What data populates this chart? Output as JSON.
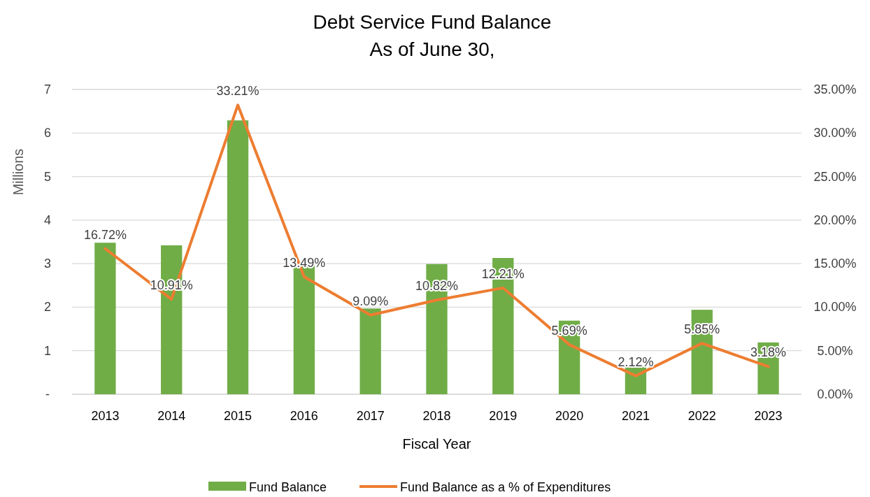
{
  "chart_data": {
    "type": "bar",
    "title": "Debt Service Fund Balance",
    "subtitle": "As of June 30,",
    "xlabel": "Fiscal Year",
    "ylabel": "Millions",
    "categories": [
      "2013",
      "2014",
      "2015",
      "2016",
      "2017",
      "2018",
      "2019",
      "2020",
      "2021",
      "2022",
      "2023"
    ],
    "series": [
      {
        "name": "Fund Balance",
        "type": "bar",
        "color": "#70ad47",
        "values": [
          3.48,
          3.42,
          6.29,
          2.95,
          1.97,
          2.99,
          3.13,
          1.69,
          0.64,
          1.94,
          1.19
        ]
      },
      {
        "name": "Fund Balance as a % of Expenditures",
        "type": "line",
        "axis": "y2",
        "color": "#ed7d31",
        "values": [
          16.72,
          10.91,
          33.21,
          13.49,
          9.09,
          10.82,
          12.21,
          5.69,
          2.12,
          5.85,
          3.18
        ],
        "value_labels": [
          "16.72%",
          "10.91%",
          "33.21%",
          "13.49%",
          "9.09%",
          "10.82%",
          "12.21%",
          "5.69%",
          "2.12%",
          "5.85%",
          "3.18%"
        ]
      }
    ],
    "ylim": [
      0,
      7
    ],
    "yticks": [
      {
        "value": 0,
        "label": "-"
      },
      1,
      2,
      3,
      4,
      5,
      6,
      7
    ],
    "y2lim": [
      0,
      35
    ],
    "y2ticks": [
      {
        "value": 0,
        "label": "0.00%"
      },
      {
        "value": 5,
        "label": "5.00%"
      },
      {
        "value": 10,
        "label": "10.00%"
      },
      {
        "value": 15,
        "label": "15.00%"
      },
      {
        "value": 20,
        "label": "20.00%"
      },
      {
        "value": 25,
        "label": "25.00%"
      },
      {
        "value": 30,
        "label": "30.00%"
      },
      {
        "value": 35,
        "label": "35.00%"
      }
    ],
    "grid": "y",
    "legend": "bottom",
    "marker": "none",
    "line_style": "solid"
  }
}
